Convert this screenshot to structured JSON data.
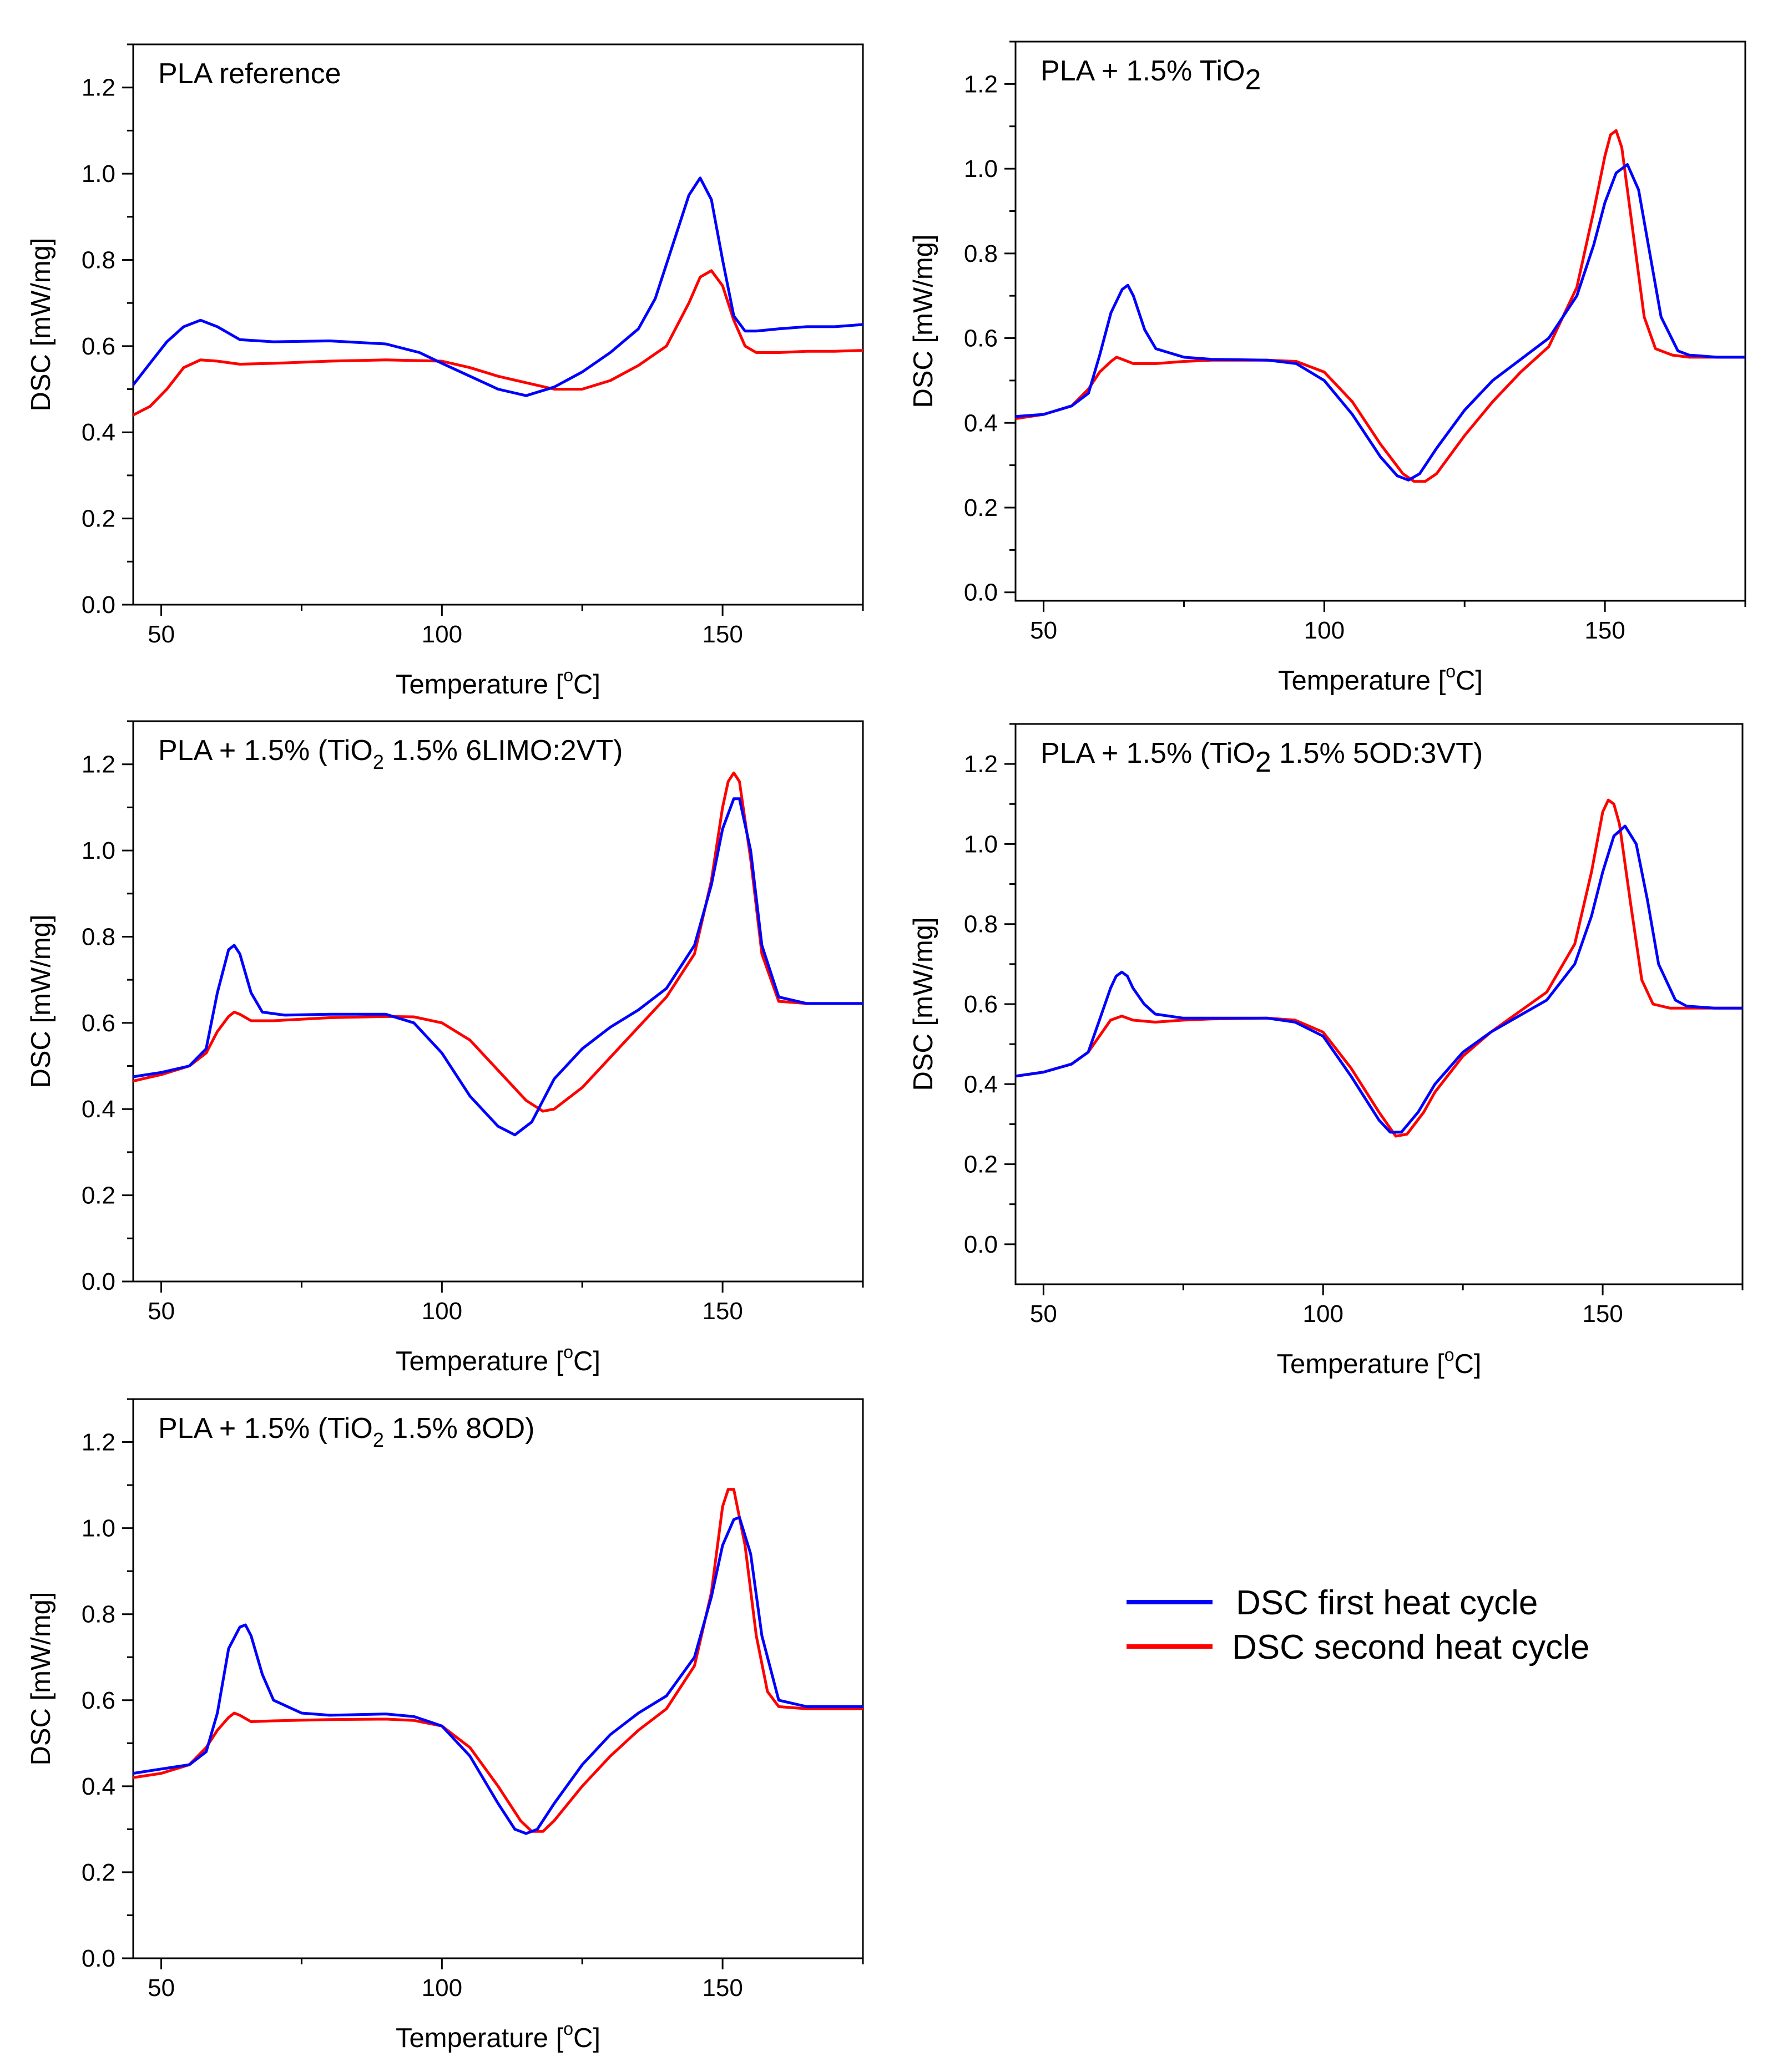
{
  "legend": [
    {
      "name": "DSC first heat cycle",
      "color": "#0000ff"
    },
    {
      "name": "DSC second heat cycle",
      "color": "#ff0000"
    }
  ],
  "chart_data": [
    {
      "type": "line",
      "title": "PLA reference",
      "xlabel": "Temperature [°C]",
      "ylabel": "DSC [mW/mg]",
      "xlim": [
        45,
        175
      ],
      "ylim": [
        0.0,
        1.3
      ],
      "xticks": [
        "50",
        "100",
        "150"
      ],
      "yticks": [
        "0.0",
        "0.2",
        "0.4",
        "0.6",
        "0.8",
        "1.0",
        "1.2"
      ],
      "series": [
        {
          "name": "DSC first heat cycle",
          "color": "#0000ff",
          "x": [
            45,
            48,
            51,
            54,
            57,
            60,
            64,
            70,
            80,
            90,
            96,
            100,
            105,
            110,
            115,
            120,
            125,
            130,
            135,
            138,
            141,
            144,
            146,
            148,
            150,
            152,
            154,
            156,
            160,
            165,
            170,
            175
          ],
          "y": [
            0.51,
            0.56,
            0.61,
            0.645,
            0.66,
            0.645,
            0.615,
            0.61,
            0.612,
            0.605,
            0.585,
            0.56,
            0.53,
            0.5,
            0.485,
            0.505,
            0.54,
            0.585,
            0.64,
            0.71,
            0.83,
            0.95,
            0.99,
            0.94,
            0.8,
            0.67,
            0.635,
            0.635,
            0.64,
            0.645,
            0.645,
            0.65
          ]
        },
        {
          "name": "DSC second heat cycle",
          "color": "#ff0000",
          "x": [
            45,
            48,
            51,
            54,
            57,
            60,
            64,
            70,
            80,
            90,
            100,
            105,
            110,
            115,
            120,
            125,
            130,
            135,
            140,
            144,
            146,
            148,
            150,
            152,
            154,
            156,
            160,
            165,
            170,
            175
          ],
          "y": [
            0.44,
            0.46,
            0.5,
            0.55,
            0.568,
            0.565,
            0.558,
            0.56,
            0.565,
            0.568,
            0.565,
            0.55,
            0.53,
            0.515,
            0.5,
            0.5,
            0.52,
            0.555,
            0.6,
            0.7,
            0.76,
            0.775,
            0.74,
            0.66,
            0.6,
            0.585,
            0.585,
            0.588,
            0.588,
            0.59
          ]
        }
      ]
    },
    {
      "type": "line",
      "title": "PLA + 1.5% TiO",
      "title_sub": "2",
      "xlabel": "Temperature [°C]",
      "ylabel": "DSC [mW/mg]",
      "xlim": [
        45,
        175
      ],
      "ylim": [
        -0.02,
        1.3
      ],
      "xticks": [
        "50",
        "100",
        "150"
      ],
      "yticks": [
        "0.0",
        "0.2",
        "0.4",
        "0.6",
        "0.8",
        "1.0",
        "1.2"
      ],
      "series": [
        {
          "name": "DSC first heat cycle",
          "color": "#0000ff",
          "x": [
            45,
            50,
            55,
            58,
            60,
            62,
            64,
            65,
            66,
            68,
            70,
            75,
            80,
            90,
            95,
            100,
            105,
            110,
            113,
            115,
            117,
            120,
            125,
            130,
            135,
            140,
            145,
            148,
            150,
            152,
            154,
            156,
            158,
            160,
            163,
            165,
            170,
            175
          ],
          "y": [
            0.415,
            0.42,
            0.44,
            0.47,
            0.56,
            0.66,
            0.715,
            0.725,
            0.7,
            0.62,
            0.575,
            0.555,
            0.55,
            0.548,
            0.54,
            0.5,
            0.42,
            0.32,
            0.275,
            0.265,
            0.28,
            0.34,
            0.43,
            0.5,
            0.55,
            0.6,
            0.7,
            0.82,
            0.92,
            0.99,
            1.01,
            0.95,
            0.8,
            0.65,
            0.57,
            0.56,
            0.555,
            0.555
          ]
        },
        {
          "name": "DSC second heat cycle",
          "color": "#ff0000",
          "x": [
            45,
            50,
            55,
            58,
            60,
            62,
            63,
            64,
            66,
            70,
            75,
            80,
            90,
            95,
            100,
            105,
            110,
            114,
            116,
            118,
            120,
            125,
            130,
            135,
            140,
            145,
            148,
            150,
            151,
            152,
            153,
            155,
            157,
            159,
            162,
            165,
            170,
            175
          ],
          "y": [
            0.41,
            0.42,
            0.44,
            0.48,
            0.52,
            0.545,
            0.555,
            0.55,
            0.54,
            0.54,
            0.545,
            0.548,
            0.548,
            0.545,
            0.52,
            0.45,
            0.35,
            0.28,
            0.262,
            0.262,
            0.28,
            0.37,
            0.45,
            0.52,
            0.58,
            0.72,
            0.9,
            1.03,
            1.08,
            1.09,
            1.05,
            0.85,
            0.65,
            0.575,
            0.56,
            0.555,
            0.555,
            0.555
          ]
        }
      ]
    },
    {
      "type": "line",
      "title": "PLA + 1.5% (TiO",
      "title_sub": "2",
      "title_rest": " 1.5% 6LIMO:2VT)",
      "xlabel": "Temperature [°C]",
      "ylabel": "DSC [mW/mg]",
      "xlim": [
        45,
        175
      ],
      "ylim": [
        0.0,
        1.3
      ],
      "xticks": [
        "50",
        "100",
        "150"
      ],
      "yticks": [
        "0.0",
        "0.2",
        "0.4",
        "0.6",
        "0.8",
        "1.0",
        "1.2"
      ],
      "series": [
        {
          "name": "DSC first heat cycle",
          "color": "#0000ff",
          "x": [
            45,
            50,
            55,
            58,
            60,
            62,
            63,
            64,
            66,
            68,
            72,
            80,
            90,
            95,
            100,
            105,
            110,
            113,
            116,
            120,
            125,
            130,
            135,
            140,
            145,
            148,
            150,
            152,
            153,
            155,
            157,
            160,
            165,
            170,
            175
          ],
          "y": [
            0.475,
            0.485,
            0.5,
            0.54,
            0.67,
            0.77,
            0.78,
            0.76,
            0.67,
            0.625,
            0.618,
            0.62,
            0.62,
            0.6,
            0.53,
            0.43,
            0.36,
            0.34,
            0.37,
            0.47,
            0.54,
            0.59,
            0.63,
            0.68,
            0.78,
            0.92,
            1.05,
            1.12,
            1.12,
            1.0,
            0.78,
            0.66,
            0.645,
            0.645,
            0.645
          ]
        },
        {
          "name": "DSC second heat cycle",
          "color": "#ff0000",
          "x": [
            45,
            50,
            55,
            58,
            60,
            62,
            63,
            64,
            66,
            70,
            80,
            90,
            95,
            100,
            105,
            110,
            115,
            118,
            120,
            125,
            130,
            135,
            140,
            145,
            148,
            150,
            151,
            152,
            153,
            155,
            157,
            160,
            165,
            170,
            175
          ],
          "y": [
            0.465,
            0.48,
            0.5,
            0.53,
            0.58,
            0.615,
            0.625,
            0.62,
            0.605,
            0.605,
            0.612,
            0.615,
            0.614,
            0.6,
            0.56,
            0.49,
            0.42,
            0.395,
            0.4,
            0.45,
            0.52,
            0.59,
            0.66,
            0.76,
            0.93,
            1.1,
            1.16,
            1.18,
            1.16,
            0.98,
            0.76,
            0.65,
            0.645,
            0.645,
            0.645
          ]
        }
      ]
    },
    {
      "type": "line",
      "title": "PLA + 1.5% (TiO",
      "title_sub": "2",
      "title_rest": " 1.5% 5OD:3VT)",
      "xlabel": "Temperature [°C]",
      "ylabel": "DSC [mW/mg]",
      "xlim": [
        45,
        175
      ],
      "ylim": [
        -0.1,
        1.3
      ],
      "xticks": [
        "50",
        "100",
        "150"
      ],
      "yticks": [
        "0.0",
        "0.2",
        "0.4",
        "0.6",
        "0.8",
        "1.0",
        "1.2"
      ],
      "series": [
        {
          "name": "DSC first heat cycle",
          "color": "#0000ff",
          "x": [
            45,
            50,
            55,
            58,
            60,
            62,
            63,
            64,
            65,
            66,
            68,
            70,
            75,
            80,
            90,
            95,
            100,
            105,
            110,
            112,
            114,
            117,
            120,
            125,
            130,
            135,
            140,
            145,
            148,
            150,
            152,
            154,
            156,
            158,
            160,
            163,
            165,
            170,
            175
          ],
          "y": [
            0.42,
            0.43,
            0.45,
            0.48,
            0.56,
            0.64,
            0.67,
            0.68,
            0.67,
            0.64,
            0.6,
            0.575,
            0.565,
            0.565,
            0.565,
            0.555,
            0.52,
            0.42,
            0.31,
            0.28,
            0.28,
            0.33,
            0.4,
            0.48,
            0.53,
            0.57,
            0.61,
            0.7,
            0.82,
            0.93,
            1.02,
            1.045,
            1.0,
            0.86,
            0.7,
            0.61,
            0.595,
            0.59,
            0.59
          ]
        },
        {
          "name": "DSC second heat cycle",
          "color": "#ff0000",
          "x": [
            45,
            50,
            55,
            58,
            60,
            62,
            64,
            66,
            70,
            75,
            80,
            90,
            95,
            100,
            105,
            110,
            113,
            115,
            118,
            120,
            125,
            130,
            135,
            140,
            145,
            148,
            150,
            151,
            152,
            153,
            155,
            157,
            159,
            162,
            165,
            170,
            175
          ],
          "y": [
            0.42,
            0.43,
            0.45,
            0.48,
            0.52,
            0.56,
            0.57,
            0.56,
            0.555,
            0.56,
            0.563,
            0.565,
            0.56,
            0.53,
            0.44,
            0.33,
            0.27,
            0.275,
            0.33,
            0.38,
            0.47,
            0.53,
            0.58,
            0.63,
            0.75,
            0.93,
            1.08,
            1.11,
            1.1,
            1.05,
            0.85,
            0.66,
            0.6,
            0.59,
            0.59,
            0.59,
            0.59
          ]
        }
      ]
    },
    {
      "type": "line",
      "title": "PLA + 1.5% (TiO",
      "title_sub": "2",
      "title_rest": " 1.5% 8OD)",
      "xlabel": "Temperature [°C]",
      "ylabel": "DSC [mW/mg]",
      "xlim": [
        45,
        175
      ],
      "ylim": [
        0.0,
        1.3
      ],
      "xticks": [
        "50",
        "100",
        "150"
      ],
      "yticks": [
        "0.0",
        "0.2",
        "0.4",
        "0.6",
        "0.8",
        "1.0",
        "1.2"
      ],
      "series": [
        {
          "name": "DSC first heat cycle",
          "color": "#0000ff",
          "x": [
            45,
            50,
            55,
            58,
            60,
            62,
            64,
            65,
            66,
            68,
            70,
            75,
            80,
            90,
            95,
            100,
            105,
            110,
            113,
            115,
            117,
            120,
            125,
            130,
            135,
            140,
            145,
            148,
            150,
            152,
            153,
            155,
            157,
            160,
            165,
            170,
            175
          ],
          "y": [
            0.43,
            0.44,
            0.45,
            0.48,
            0.57,
            0.72,
            0.77,
            0.775,
            0.75,
            0.66,
            0.6,
            0.57,
            0.565,
            0.568,
            0.562,
            0.54,
            0.47,
            0.36,
            0.3,
            0.29,
            0.3,
            0.36,
            0.45,
            0.52,
            0.57,
            0.61,
            0.7,
            0.84,
            0.96,
            1.02,
            1.025,
            0.94,
            0.75,
            0.6,
            0.585,
            0.585,
            0.585
          ]
        },
        {
          "name": "DSC second heat cycle",
          "color": "#ff0000",
          "x": [
            45,
            50,
            55,
            58,
            60,
            62,
            63,
            64,
            66,
            70,
            80,
            90,
            95,
            100,
            105,
            110,
            114,
            116,
            118,
            120,
            125,
            130,
            135,
            140,
            145,
            148,
            150,
            151,
            152,
            154,
            156,
            158,
            160,
            165,
            170,
            175
          ],
          "y": [
            0.42,
            0.43,
            0.45,
            0.49,
            0.53,
            0.56,
            0.57,
            0.565,
            0.55,
            0.552,
            0.555,
            0.556,
            0.553,
            0.54,
            0.49,
            0.4,
            0.32,
            0.295,
            0.295,
            0.32,
            0.4,
            0.47,
            0.53,
            0.58,
            0.68,
            0.85,
            1.05,
            1.09,
            1.09,
            0.96,
            0.75,
            0.62,
            0.585,
            0.58,
            0.58,
            0.58
          ]
        }
      ]
    }
  ]
}
